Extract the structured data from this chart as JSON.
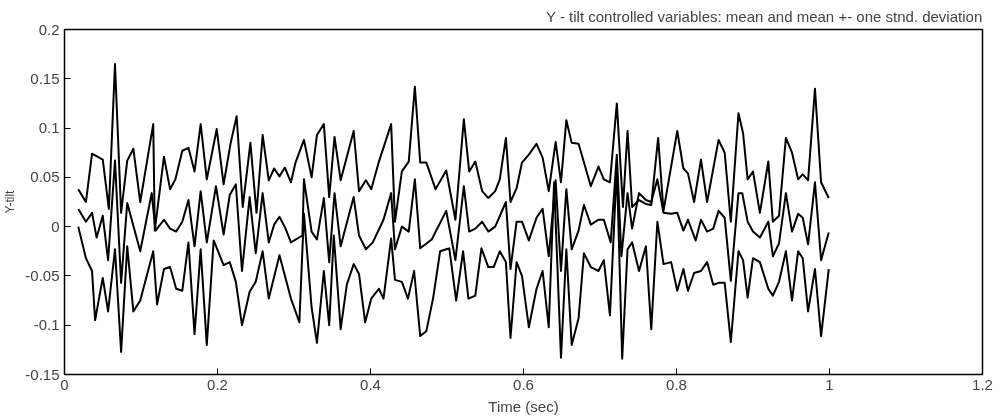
{
  "chart_data": {
    "type": "line",
    "title": "Y - tilt controlled variables: mean and mean +- one stnd. deviation",
    "xlabel": "Time (sec)",
    "ylabel": "Y-tilt",
    "xlim": [
      0,
      1.2
    ],
    "ylim": [
      -0.15,
      0.2
    ],
    "xticks": [
      0,
      0.2,
      0.4,
      0.6,
      0.8,
      1,
      1.2
    ],
    "yticks": [
      -0.15,
      -0.1,
      -0.05,
      0,
      0.05,
      0.1,
      0.15,
      0.2
    ],
    "grid": false,
    "marker": "none",
    "line_style": "solid",
    "series": [
      {
        "color": "#000000",
        "x": [
          0.018,
          0.028,
          0.036,
          0.05,
          0.058,
          0.066,
          0.074,
          0.082,
          0.09,
          0.099,
          0.116,
          0.118,
          0.13,
          0.138,
          0.145,
          0.154,
          0.162,
          0.17,
          0.178,
          0.186,
          0.199,
          0.208,
          0.217,
          0.225,
          0.233,
          0.243,
          0.251,
          0.259,
          0.267,
          0.274,
          0.281,
          0.288,
          0.296,
          0.302,
          0.313,
          0.323,
          0.33,
          0.339,
          0.346,
          0.353,
          0.361,
          0.378,
          0.385,
          0.394,
          0.401,
          0.411,
          0.427,
          0.432,
          0.441,
          0.45,
          0.458,
          0.465,
          0.473,
          0.485,
          0.499,
          0.511,
          0.522,
          0.529,
          0.537,
          0.546,
          0.554,
          0.563,
          0.569,
          0.577,
          0.583,
          0.591,
          0.598,
          0.607,
          0.617,
          0.625,
          0.633,
          0.642,
          0.649,
          0.656,
          0.663,
          0.672,
          0.688,
          0.698,
          0.705,
          0.713,
          0.722,
          0.73,
          0.736,
          0.742,
          0.751,
          0.76,
          0.767,
          0.776,
          0.783,
          0.801,
          0.809,
          0.815,
          0.823,
          0.832,
          0.84,
          0.855,
          0.863,
          0.871,
          0.881,
          0.887,
          0.893,
          0.9,
          0.909,
          0.92,
          0.926,
          0.934,
          0.943,
          0.951,
          0.959,
          0.965,
          0.972,
          0.981,
          0.989,
          0.999
        ],
        "values": [
          0.038,
          0.025,
          0.074,
          0.068,
          0.018,
          0.165,
          0.014,
          0.067,
          0.079,
          0.025,
          0.104,
          -0.004,
          0.071,
          0.038,
          0.048,
          0.077,
          0.08,
          0.056,
          0.104,
          0.048,
          0.099,
          0.043,
          0.084,
          0.112,
          0.02,
          0.085,
          0.014,
          0.093,
          0.047,
          0.059,
          0.051,
          0.06,
          0.045,
          0.065,
          0.088,
          0.05,
          0.093,
          0.104,
          0.03,
          0.091,
          0.047,
          0.097,
          0.036,
          0.047,
          0.038,
          0.066,
          0.104,
          0.005,
          0.056,
          0.066,
          0.142,
          0.065,
          0.065,
          0.038,
          0.057,
          0.007,
          0.109,
          0.056,
          0.066,
          0.036,
          0.029,
          0.036,
          0.048,
          0.09,
          0.025,
          0.039,
          0.065,
          0.073,
          0.084,
          0.07,
          0.036,
          0.086,
          0.045,
          0.108,
          0.085,
          0.084,
          0.041,
          0.061,
          0.048,
          0.045,
          0.125,
          0.02,
          0.097,
          0.02,
          0.027,
          0.023,
          0.022,
          0.09,
          0.016,
          0.097,
          0.059,
          0.054,
          0.025,
          0.068,
          0.025,
          0.088,
          0.075,
          0.005,
          0.115,
          0.095,
          0.048,
          0.056,
          0.014,
          0.066,
          0.005,
          0.011,
          0.09,
          0.075,
          0.048,
          0.053,
          0.047,
          0.14,
          0.045,
          0.029
        ]
      },
      {
        "color": "#000000",
        "x": [
          0.018,
          0.028,
          0.036,
          0.042,
          0.05,
          0.057,
          0.066,
          0.074,
          0.082,
          0.099,
          0.114,
          0.119,
          0.13,
          0.138,
          0.146,
          0.154,
          0.162,
          0.17,
          0.178,
          0.186,
          0.198,
          0.208,
          0.216,
          0.224,
          0.232,
          0.242,
          0.25,
          0.259,
          0.267,
          0.274,
          0.281,
          0.289,
          0.296,
          0.311,
          0.313,
          0.323,
          0.33,
          0.339,
          0.346,
          0.353,
          0.361,
          0.378,
          0.385,
          0.394,
          0.403,
          0.417,
          0.427,
          0.432,
          0.441,
          0.45,
          0.458,
          0.465,
          0.48,
          0.499,
          0.511,
          0.522,
          0.529,
          0.537,
          0.546,
          0.554,
          0.563,
          0.577,
          0.583,
          0.591,
          0.598,
          0.607,
          0.617,
          0.625,
          0.633,
          0.642,
          0.649,
          0.656,
          0.663,
          0.672,
          0.679,
          0.688,
          0.698,
          0.705,
          0.714,
          0.722,
          0.728,
          0.736,
          0.742,
          0.751,
          0.76,
          0.767,
          0.775,
          0.783,
          0.793,
          0.801,
          0.809,
          0.815,
          0.825,
          0.832,
          0.84,
          0.848,
          0.855,
          0.863,
          0.871,
          0.881,
          0.886,
          0.893,
          0.9,
          0.909,
          0.92,
          0.926,
          0.934,
          0.943,
          0.951,
          0.959,
          0.965,
          0.972,
          0.981,
          0.989,
          0.999
        ],
        "values": [
          0.018,
          0.005,
          0.014,
          -0.011,
          0.011,
          -0.034,
          0.067,
          -0.057,
          0.024,
          -0.025,
          0.034,
          -0.004,
          0.007,
          -0.002,
          -0.005,
          0.005,
          0.027,
          -0.02,
          0.036,
          -0.016,
          0.041,
          -0.008,
          0.032,
          0.043,
          -0.045,
          0.03,
          -0.027,
          0.034,
          -0.016,
          0.002,
          0.01,
          -0.002,
          -0.016,
          -0.009,
          0.048,
          -0.005,
          -0.013,
          0.029,
          -0.036,
          0.034,
          -0.02,
          0.03,
          -0.009,
          -0.023,
          -0.016,
          0.007,
          0.034,
          -0.023,
          0.0,
          -0.005,
          0.048,
          -0.022,
          -0.013,
          0.016,
          -0.034,
          0.041,
          -0.005,
          -0.002,
          0.005,
          -0.005,
          0.0,
          0.025,
          -0.043,
          0.005,
          0.005,
          -0.014,
          0.009,
          0.018,
          -0.03,
          0.047,
          -0.045,
          0.038,
          -0.023,
          -0.004,
          0.022,
          0.002,
          0.007,
          0.007,
          -0.016,
          0.073,
          -0.03,
          0.034,
          -0.002,
          0.034,
          0.027,
          0.025,
          0.048,
          0.014,
          0.013,
          0.014,
          -0.004,
          0.007,
          -0.014,
          0.007,
          -0.005,
          -0.002,
          0.016,
          0.009,
          -0.055,
          0.034,
          0.034,
          0.005,
          -0.005,
          -0.011,
          0.005,
          -0.03,
          -0.017,
          0.034,
          -0.005,
          0.013,
          0.009,
          -0.018,
          0.045,
          -0.034,
          -0.006
        ]
      },
      {
        "color": "#000000",
        "x": [
          0.018,
          0.028,
          0.036,
          0.04,
          0.05,
          0.057,
          0.066,
          0.074,
          0.082,
          0.09,
          0.099,
          0.116,
          0.121,
          0.13,
          0.138,
          0.146,
          0.154,
          0.162,
          0.17,
          0.178,
          0.186,
          0.195,
          0.208,
          0.216,
          0.224,
          0.232,
          0.242,
          0.25,
          0.259,
          0.267,
          0.281,
          0.296,
          0.307,
          0.313,
          0.323,
          0.33,
          0.339,
          0.346,
          0.352,
          0.361,
          0.369,
          0.378,
          0.385,
          0.393,
          0.401,
          0.411,
          0.417,
          0.427,
          0.432,
          0.441,
          0.449,
          0.457,
          0.465,
          0.473,
          0.482,
          0.491,
          0.499,
          0.503,
          0.512,
          0.521,
          0.528,
          0.537,
          0.545,
          0.554,
          0.561,
          0.569,
          0.577,
          0.583,
          0.591,
          0.598,
          0.607,
          0.617,
          0.625,
          0.633,
          0.64,
          0.649,
          0.656,
          0.663,
          0.672,
          0.679,
          0.688,
          0.698,
          0.705,
          0.713,
          0.722,
          0.729,
          0.736,
          0.742,
          0.751,
          0.76,
          0.767,
          0.775,
          0.783,
          0.793,
          0.801,
          0.809,
          0.815,
          0.823,
          0.832,
          0.84,
          0.848,
          0.855,
          0.863,
          0.871,
          0.881,
          0.887,
          0.893,
          0.9,
          0.909,
          0.92,
          0.926,
          0.934,
          0.943,
          0.951,
          0.959,
          0.965,
          0.972,
          0.981,
          0.989,
          0.999
        ],
        "values": [
          0.0,
          -0.032,
          -0.045,
          -0.095,
          -0.052,
          -0.086,
          -0.023,
          -0.127,
          -0.02,
          -0.086,
          -0.075,
          -0.025,
          -0.079,
          -0.043,
          -0.041,
          -0.063,
          -0.065,
          -0.016,
          -0.109,
          -0.023,
          -0.12,
          -0.014,
          -0.039,
          -0.036,
          -0.056,
          -0.1,
          -0.066,
          -0.056,
          -0.025,
          -0.073,
          -0.029,
          -0.073,
          -0.097,
          0.013,
          -0.082,
          -0.118,
          -0.045,
          -0.1,
          -0.009,
          -0.104,
          -0.059,
          -0.038,
          -0.048,
          -0.097,
          -0.073,
          -0.063,
          -0.073,
          -0.012,
          -0.054,
          -0.056,
          -0.073,
          -0.045,
          -0.111,
          -0.106,
          -0.072,
          -0.025,
          -0.023,
          -0.022,
          -0.075,
          -0.025,
          -0.073,
          -0.07,
          -0.022,
          -0.041,
          -0.041,
          -0.025,
          -0.036,
          -0.113,
          -0.036,
          -0.05,
          -0.102,
          -0.063,
          -0.045,
          -0.102,
          0.045,
          -0.133,
          -0.023,
          -0.12,
          -0.093,
          -0.027,
          -0.041,
          -0.045,
          -0.034,
          -0.09,
          0.061,
          -0.134,
          -0.023,
          -0.016,
          -0.045,
          -0.02,
          -0.104,
          0.005,
          -0.038,
          -0.036,
          -0.065,
          -0.043,
          -0.065,
          -0.047,
          -0.045,
          -0.036,
          -0.059,
          -0.057,
          -0.057,
          -0.117,
          -0.025,
          -0.034,
          -0.072,
          -0.032,
          -0.036,
          -0.063,
          -0.07,
          -0.056,
          -0.025,
          -0.075,
          -0.025,
          -0.032,
          -0.086,
          -0.043,
          -0.111,
          -0.043
        ]
      }
    ]
  }
}
